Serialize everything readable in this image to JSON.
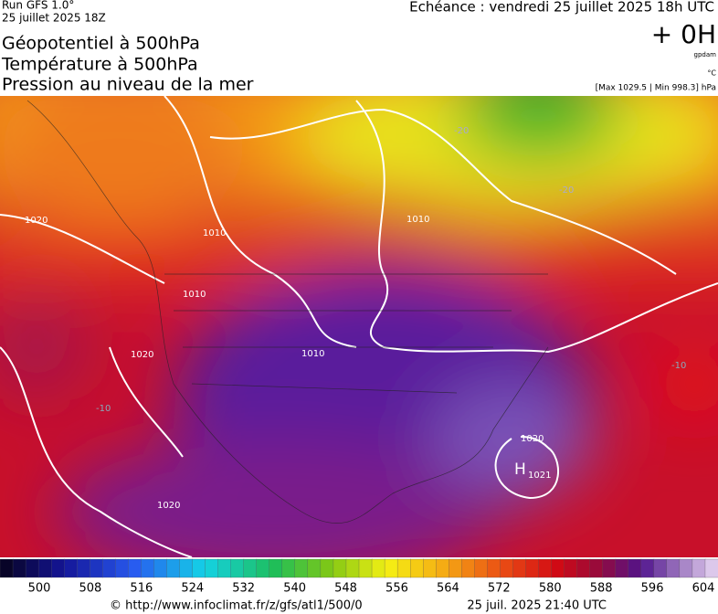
{
  "header": {
    "run": "Run GFS 1.0°",
    "run_date": "25 juillet 2025 18Z",
    "titles": [
      "Géopotentiel à 500hPa",
      "Température à 500hPa",
      "Pression au niveau de la mer"
    ],
    "echeance": "Echéance : vendredi 25 juillet 2025 18h UTC",
    "lead": "+ 0H",
    "unit_geo": "gpdam",
    "unit_temp": "°C",
    "pressure_range": "[Max 1029.5 | Min 998.3] hPa"
  },
  "map": {
    "labels": [
      "1020",
      "1010",
      "1010",
      "1010",
      "1010",
      "1020",
      "1020",
      "1020",
      "-10",
      "-20",
      "-20",
      "-10",
      "H",
      "1021"
    ]
  },
  "colorbar": {
    "labels": [
      500,
      508,
      516,
      524,
      532,
      540,
      548,
      556,
      564,
      572,
      580,
      588,
      596,
      604
    ]
  },
  "footer": {
    "url": "© http://www.infoclimat.fr/z/gfs/atl1/500/0",
    "date": "25 juil. 2025 21:40 UTC"
  }
}
